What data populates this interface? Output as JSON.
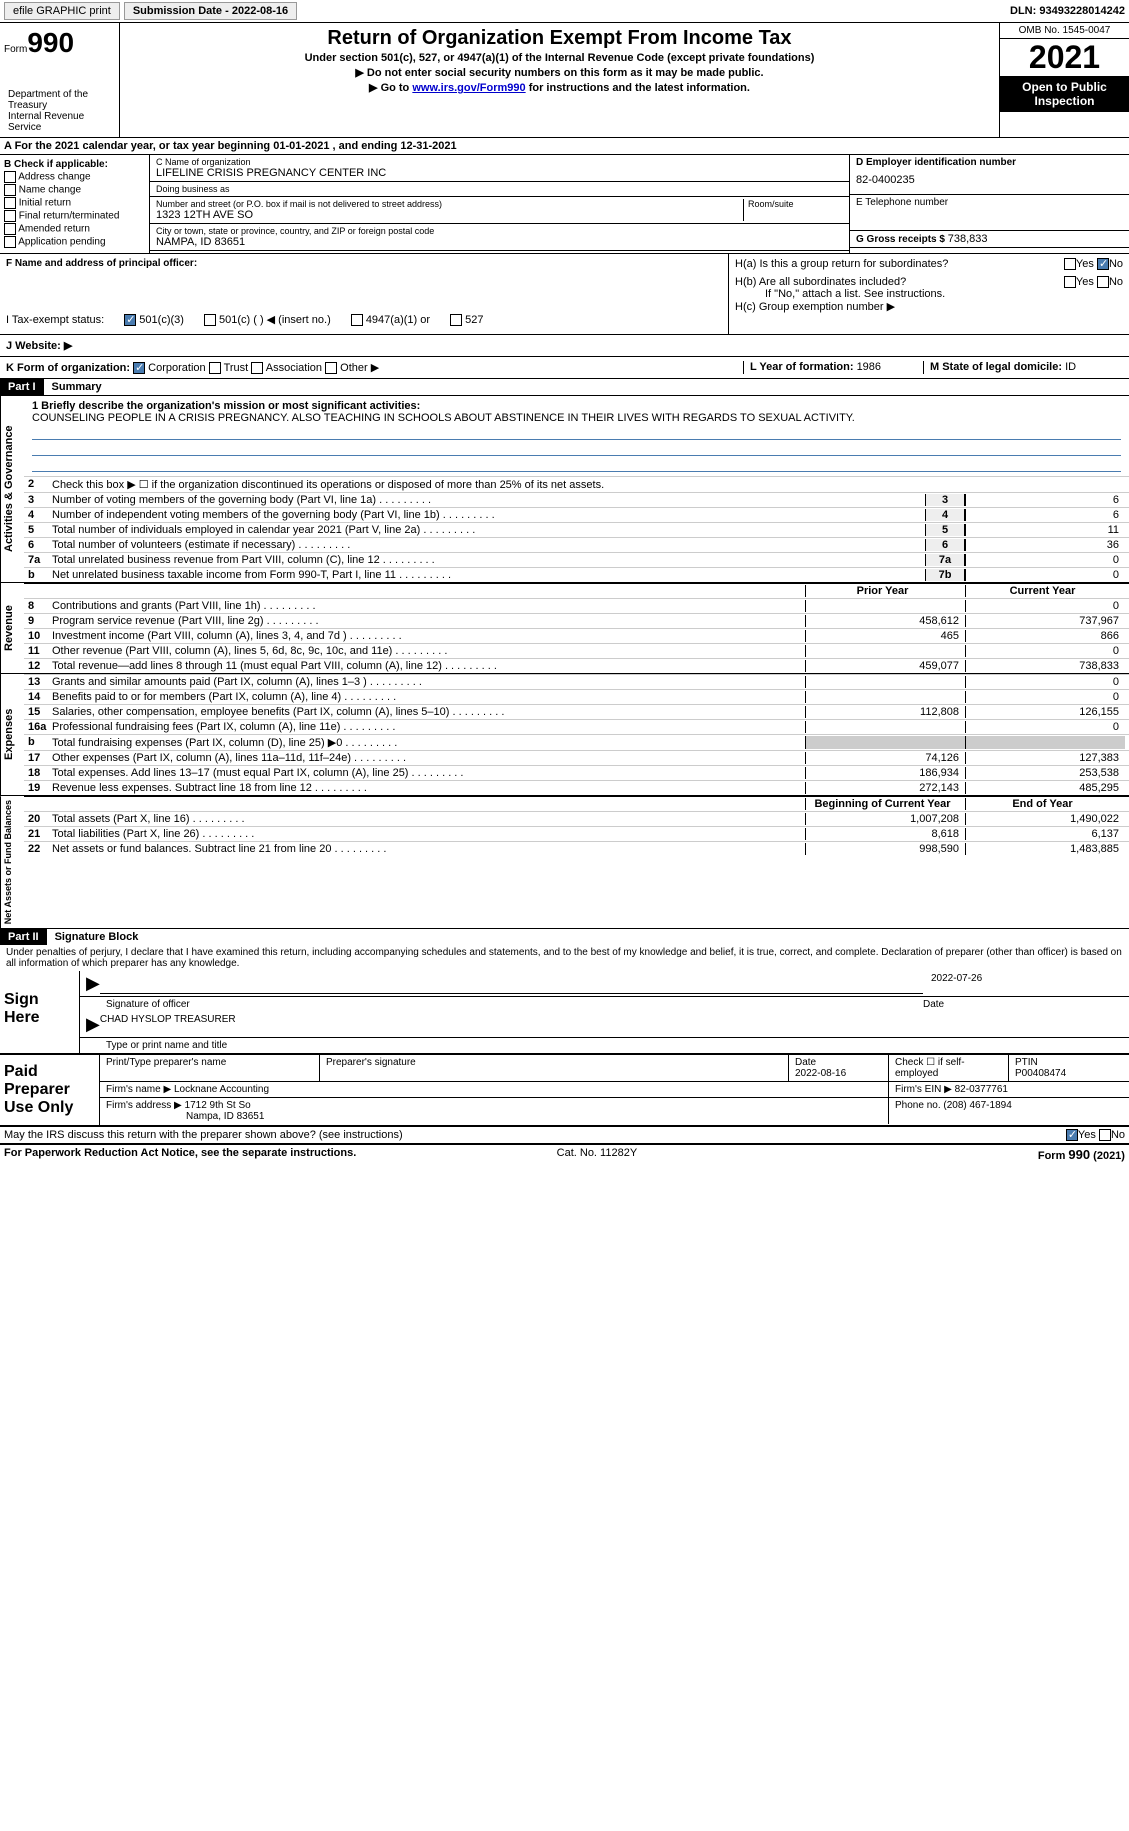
{
  "topbar": {
    "efile": "efile GRAPHIC print",
    "submission_label": "Submission Date - ",
    "submission_date": "2022-08-16",
    "dln_label": "DLN: ",
    "dln": "93493228014242"
  },
  "header": {
    "form_label": "Form",
    "form_num": "990",
    "title": "Return of Organization Exempt From Income Tax",
    "subtitle": "Under section 501(c), 527, or 4947(a)(1) of the Internal Revenue Code (except private foundations)",
    "note1": "▶ Do not enter social security numbers on this form as it may be made public.",
    "note2_pre": "▶ Go to ",
    "note2_link": "www.irs.gov/Form990",
    "note2_post": " for instructions and the latest information.",
    "omb": "OMB No. 1545-0047",
    "year": "2021",
    "inspect": "Open to Public Inspection",
    "dept": "Department of the Treasury",
    "irs": "Internal Revenue Service"
  },
  "row_a": {
    "text_pre": "A For the 2021 calendar year, or tax year beginning ",
    "begin": "01-01-2021",
    "mid": " , and ending ",
    "end": "12-31-2021"
  },
  "section_b": {
    "b_label": "B Check if applicable:",
    "opts": [
      "Address change",
      "Name change",
      "Initial return",
      "Final return/terminated",
      "Amended return",
      "Application pending"
    ],
    "c_name_label": "C Name of organization",
    "c_name": "LIFELINE CRISIS PREGNANCY CENTER INC",
    "dba_label": "Doing business as",
    "dba": "",
    "street_label": "Number and street (or P.O. box if mail is not delivered to street address)",
    "street": "1323 12TH AVE SO",
    "room_label": "Room/suite",
    "city_label": "City or town, state or province, country, and ZIP or foreign postal code",
    "city": "NAMPA, ID  83651",
    "d_label": "D Employer identification number",
    "d_val": "82-0400235",
    "e_label": "E Telephone number",
    "e_val": "",
    "g_label": "G Gross receipts $ ",
    "g_val": "738,833"
  },
  "row_fh": {
    "f_label": "F Name and address of principal officer:",
    "ha_label": "H(a)  Is this a group return for subordinates?",
    "hb_label": "H(b)  Are all subordinates included?",
    "hb_note": "If \"No,\" attach a list. See instructions.",
    "hc_label": "H(c)  Group exemption number ▶",
    "yes": "Yes",
    "no": "No"
  },
  "row_i": {
    "label": "I  Tax-exempt status:",
    "o1": "501(c)(3)",
    "o2": "501(c) (  ) ◀ (insert no.)",
    "o3": "4947(a)(1) or",
    "o4": "527"
  },
  "row_j": {
    "label": "J  Website: ▶"
  },
  "row_k": {
    "label": "K Form of organization:",
    "o1": "Corporation",
    "o2": "Trust",
    "o3": "Association",
    "o4": "Other ▶",
    "l_label": "L Year of formation: ",
    "l_val": "1986",
    "m_label": "M State of legal domicile: ",
    "m_val": "ID"
  },
  "part1": {
    "header": "Part I",
    "title": "Summary",
    "line1_label": "1  Briefly describe the organization's mission or most significant activities:",
    "line1_text": "COUNSELING PEOPLE IN A CRISIS PREGNANCY. ALSO TEACHING IN SCHOOLS ABOUT ABSTINENCE IN THEIR LIVES WITH REGARDS TO SEXUAL ACTIVITY.",
    "line2": "Check this box ▶ ☐ if the organization discontinued its operations or disposed of more than 25% of its net assets.",
    "gov_label": "Activities & Governance",
    "rev_label": "Revenue",
    "exp_label": "Expenses",
    "na_label": "Net Assets or Fund Balances",
    "prior_year": "Prior Year",
    "current_year": "Current Year",
    "boc": "Beginning of Current Year",
    "eoy": "End of Year",
    "lines_gov": [
      {
        "n": "3",
        "t": "Number of voting members of the governing body (Part VI, line 1a)",
        "box": "3",
        "v": "6"
      },
      {
        "n": "4",
        "t": "Number of independent voting members of the governing body (Part VI, line 1b)",
        "box": "4",
        "v": "6"
      },
      {
        "n": "5",
        "t": "Total number of individuals employed in calendar year 2021 (Part V, line 2a)",
        "box": "5",
        "v": "11"
      },
      {
        "n": "6",
        "t": "Total number of volunteers (estimate if necessary)",
        "box": "6",
        "v": "36"
      },
      {
        "n": "7a",
        "t": "Total unrelated business revenue from Part VIII, column (C), line 12",
        "box": "7a",
        "v": "0"
      },
      {
        "n": "b",
        "t": "Net unrelated business taxable income from Form 990-T, Part I, line 11",
        "box": "7b",
        "v": "0"
      }
    ],
    "lines_rev": [
      {
        "n": "8",
        "t": "Contributions and grants (Part VIII, line 1h)",
        "py": "",
        "cy": "0"
      },
      {
        "n": "9",
        "t": "Program service revenue (Part VIII, line 2g)",
        "py": "458,612",
        "cy": "737,967"
      },
      {
        "n": "10",
        "t": "Investment income (Part VIII, column (A), lines 3, 4, and 7d )",
        "py": "465",
        "cy": "866"
      },
      {
        "n": "11",
        "t": "Other revenue (Part VIII, column (A), lines 5, 6d, 8c, 9c, 10c, and 11e)",
        "py": "",
        "cy": "0"
      },
      {
        "n": "12",
        "t": "Total revenue—add lines 8 through 11 (must equal Part VIII, column (A), line 12)",
        "py": "459,077",
        "cy": "738,833"
      }
    ],
    "lines_exp": [
      {
        "n": "13",
        "t": "Grants and similar amounts paid (Part IX, column (A), lines 1–3 )",
        "py": "",
        "cy": "0"
      },
      {
        "n": "14",
        "t": "Benefits paid to or for members (Part IX, column (A), line 4)",
        "py": "",
        "cy": "0"
      },
      {
        "n": "15",
        "t": "Salaries, other compensation, employee benefits (Part IX, column (A), lines 5–10)",
        "py": "112,808",
        "cy": "126,155"
      },
      {
        "n": "16a",
        "t": "Professional fundraising fees (Part IX, column (A), line 11e)",
        "py": "",
        "cy": "0"
      },
      {
        "n": "b",
        "t": "Total fundraising expenses (Part IX, column (D), line 25) ▶0",
        "py": "gray",
        "cy": "gray"
      },
      {
        "n": "17",
        "t": "Other expenses (Part IX, column (A), lines 11a–11d, 11f–24e)",
        "py": "74,126",
        "cy": "127,383"
      },
      {
        "n": "18",
        "t": "Total expenses. Add lines 13–17 (must equal Part IX, column (A), line 25)",
        "py": "186,934",
        "cy": "253,538"
      },
      {
        "n": "19",
        "t": "Revenue less expenses. Subtract line 18 from line 12",
        "py": "272,143",
        "cy": "485,295"
      }
    ],
    "lines_na": [
      {
        "n": "20",
        "t": "Total assets (Part X, line 16)",
        "py": "1,007,208",
        "cy": "1,490,022"
      },
      {
        "n": "21",
        "t": "Total liabilities (Part X, line 26)",
        "py": "8,618",
        "cy": "6,137"
      },
      {
        "n": "22",
        "t": "Net assets or fund balances. Subtract line 21 from line 20",
        "py": "998,590",
        "cy": "1,483,885"
      }
    ]
  },
  "part2": {
    "header": "Part II",
    "title": "Signature Block",
    "declaration": "Under penalties of perjury, I declare that I have examined this return, including accompanying schedules and statements, and to the best of my knowledge and belief, it is true, correct, and complete. Declaration of preparer (other than officer) is based on all information of which preparer has any knowledge.",
    "sign_here": "Sign Here",
    "sig_officer": "Signature of officer",
    "sig_date_label": "Date",
    "sig_date": "2022-07-26",
    "name_title": "CHAD HYSLOP  TREASURER",
    "name_title_label": "Type or print name and title",
    "paid_label": "Paid Preparer Use Only",
    "prep_name_label": "Print/Type preparer's name",
    "prep_sig_label": "Preparer's signature",
    "date_label": "Date",
    "date_val": "2022-08-16",
    "check_if": "Check ☐ if self-employed",
    "ptin_label": "PTIN",
    "ptin": "P00408474",
    "firm_name_label": "Firm's name    ▶ ",
    "firm_name": "Locknane Accounting",
    "firm_ein_label": "Firm's EIN ▶ ",
    "firm_ein": "82-0377761",
    "firm_addr_label": "Firm's address ▶ ",
    "firm_addr1": "1712 9th St So",
    "firm_addr2": "Nampa, ID  83651",
    "phone_label": "Phone no. ",
    "phone": "(208) 467-1894",
    "may_irs": "May the IRS discuss this return with the preparer shown above? (see instructions)",
    "yes": "Yes",
    "no": "No"
  },
  "footer": {
    "pra": "For Paperwork Reduction Act Notice, see the separate instructions.",
    "cat": "Cat. No. 11282Y",
    "form": "Form 990 (2021)"
  }
}
